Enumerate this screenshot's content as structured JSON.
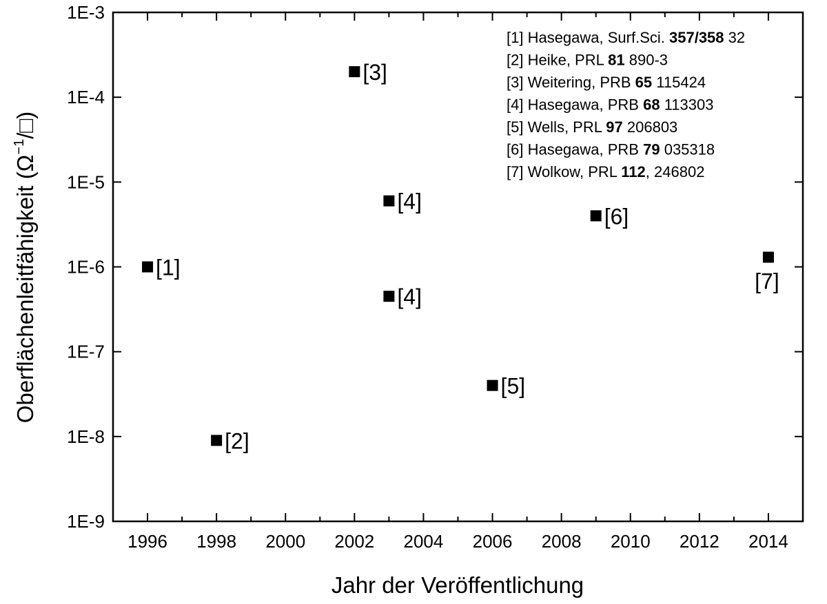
{
  "chart_data": {
    "type": "scatter",
    "xlabel": "Jahr der Veröffentlichung",
    "ylabel": "Oberflächenleitfähigkeit (Ω⁻¹/□)",
    "ylabel_parts": {
      "main": "Oberflächenleitfähigkeit (Ω",
      "sup": "−1",
      "tail": "/□)"
    },
    "xlim": [
      1995,
      2015
    ],
    "ylim": [
      1e-09,
      0.001
    ],
    "yscale": "log",
    "x_ticks": [
      1996,
      1998,
      2000,
      2002,
      2004,
      2006,
      2008,
      2010,
      2012,
      2014
    ],
    "y_ticks": [
      {
        "value": 1e-09,
        "label": "1E-9"
      },
      {
        "value": 1e-08,
        "label": "1E-8"
      },
      {
        "value": 1e-07,
        "label": "1E-7"
      },
      {
        "value": 1e-06,
        "label": "1E-6"
      },
      {
        "value": 1e-05,
        "label": "1E-5"
      },
      {
        "value": 0.0001,
        "label": "1E-4"
      },
      {
        "value": 0.001,
        "label": "1E-3"
      }
    ],
    "grid": false,
    "points": [
      {
        "x": 1996,
        "y": 1e-06,
        "label": "[1]",
        "label_pos": "right"
      },
      {
        "x": 1998,
        "y": 9e-09,
        "label": "[2]",
        "label_pos": "right"
      },
      {
        "x": 2002,
        "y": 0.0002,
        "label": "[3]",
        "label_pos": "right"
      },
      {
        "x": 2003,
        "y": 6e-06,
        "label": "[4]",
        "label_pos": "right"
      },
      {
        "x": 2003,
        "y": 4.5e-07,
        "label": "[4]",
        "label_pos": "right"
      },
      {
        "x": 2006,
        "y": 4e-08,
        "label": "[5]",
        "label_pos": "right"
      },
      {
        "x": 2009,
        "y": 4e-06,
        "label": "[6]",
        "label_pos": "right"
      },
      {
        "x": 2014,
        "y": 1.3e-06,
        "label": "[7]",
        "label_pos": "below"
      }
    ],
    "legend_placement": "top-right",
    "legend": [
      [
        {
          "t": "[1] Hasegawa, Surf.Sci. "
        },
        {
          "t": "357/358",
          "b": true
        },
        {
          "t": " 32"
        }
      ],
      [
        {
          "t": "[2] Heike, PRL "
        },
        {
          "t": "81",
          "b": true
        },
        {
          "t": " 890-3"
        }
      ],
      [
        {
          "t": "[3] Weitering, PRB "
        },
        {
          "t": "65",
          "b": true
        },
        {
          "t": " 115424"
        }
      ],
      [
        {
          "t": "[4] Hasegawa, PRB "
        },
        {
          "t": "68",
          "b": true
        },
        {
          "t": " 113303"
        }
      ],
      [
        {
          "t": "[5] Wells, PRL "
        },
        {
          "t": "97",
          "b": true
        },
        {
          "t": " 206803"
        }
      ],
      [
        {
          "t": "[6] Hasegawa, PRB "
        },
        {
          "t": "79",
          "b": true
        },
        {
          "t": " 035318"
        }
      ],
      [
        {
          "t": "[7] Wolkow, PRL "
        },
        {
          "t": "112",
          "b": true
        },
        {
          "t": ", 246802"
        }
      ]
    ],
    "colors": {
      "marker": "#000000",
      "axis": "#000000",
      "background": "#ffffff"
    }
  }
}
